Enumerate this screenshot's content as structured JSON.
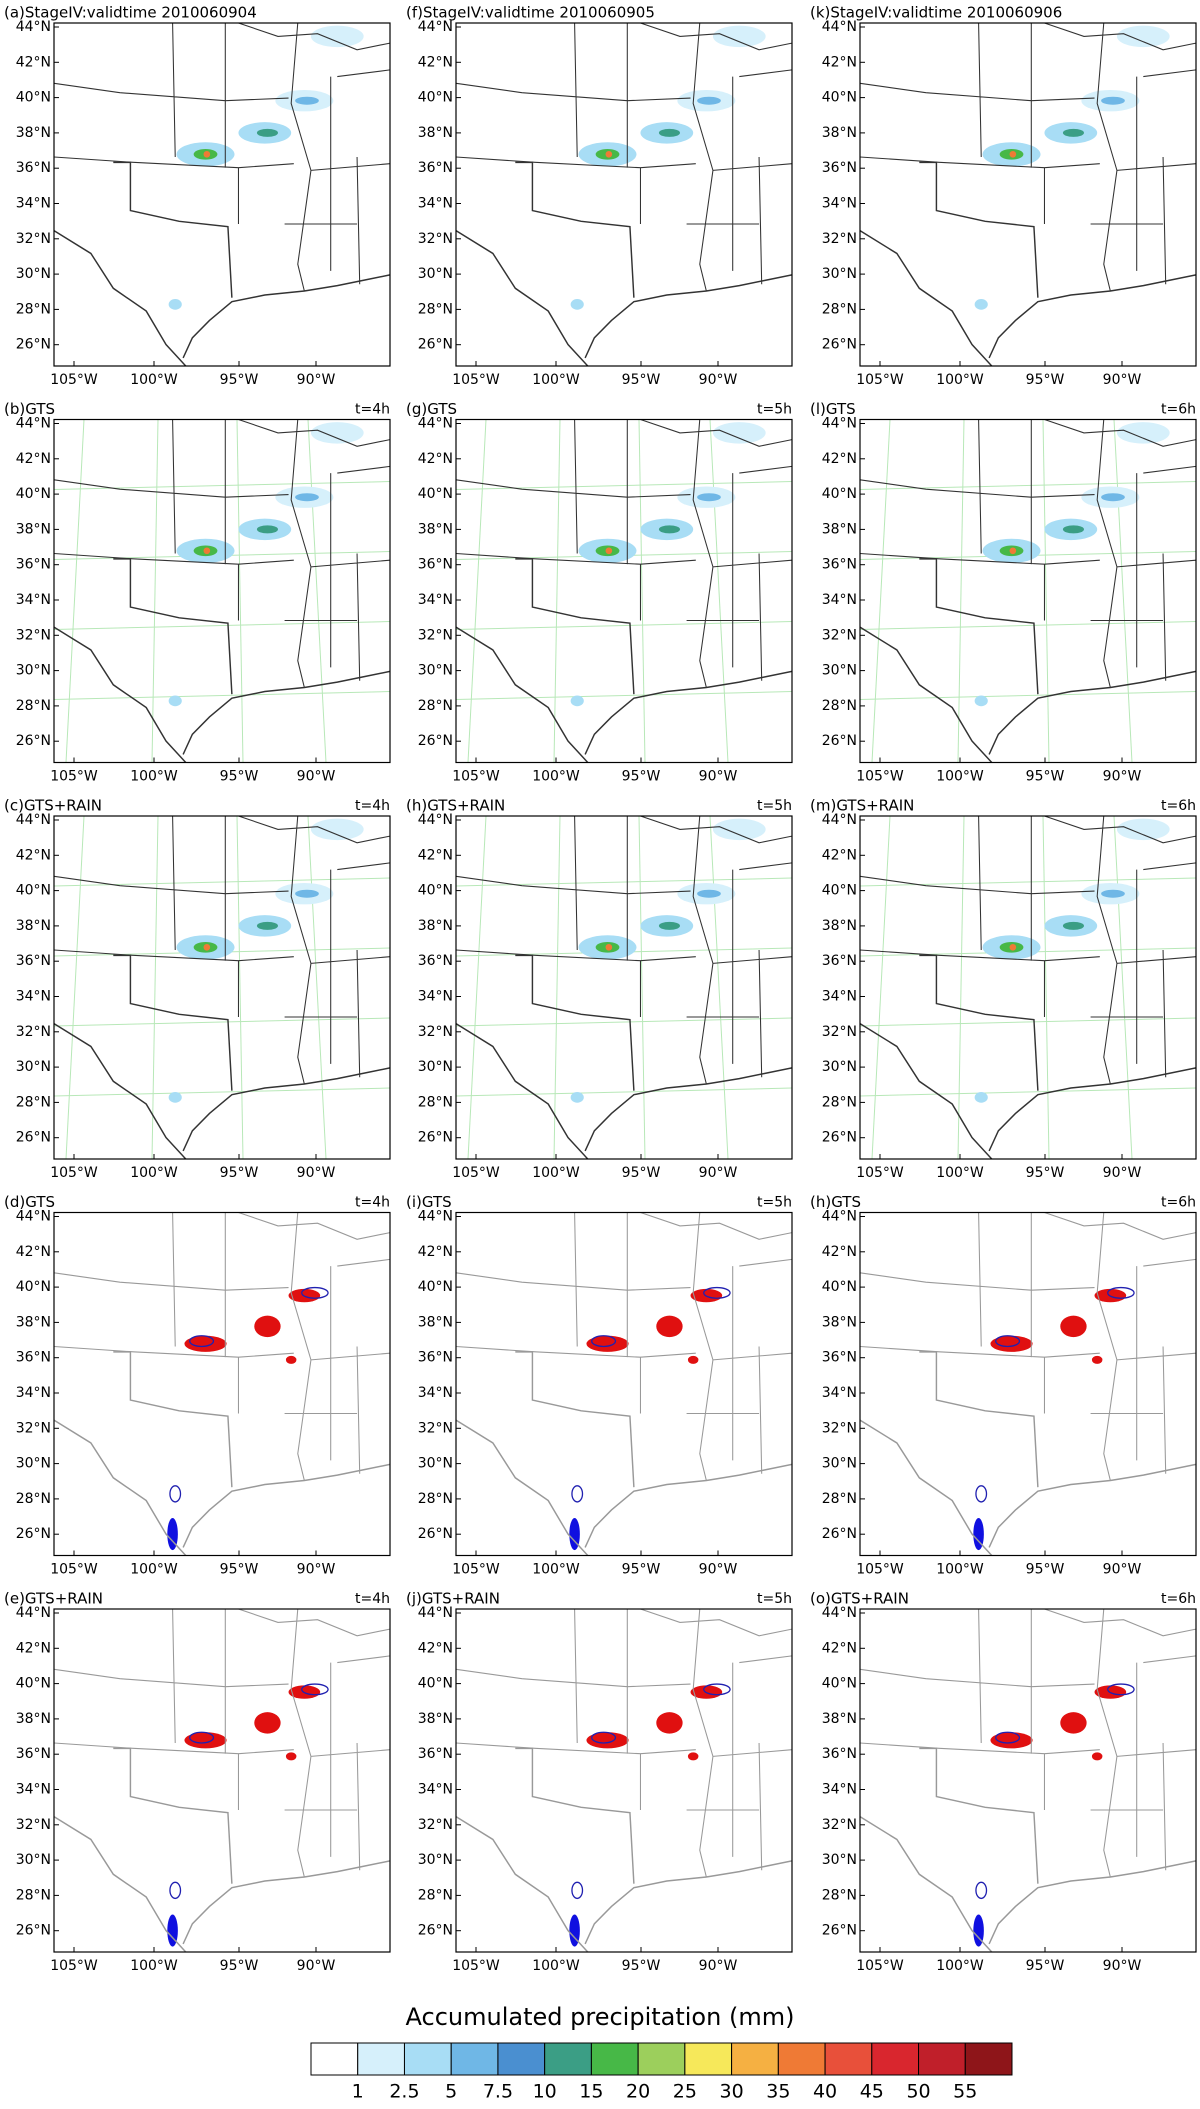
{
  "panels": [
    {
      "title": "(a)StageIV:validtime 2010060904",
      "kind": "obs"
    },
    {
      "title": "(f)StageIV:validtime 2010060905",
      "kind": "obs"
    },
    {
      "title": "(k)StageIV:validtime 2010060906",
      "kind": "obs"
    },
    {
      "title": "(b)GTS",
      "time": "t=4h",
      "kind": "fcst"
    },
    {
      "title": "(g)GTS",
      "time": "t=5h",
      "kind": "fcst"
    },
    {
      "title": "(l)GTS",
      "time": "t=6h",
      "kind": "fcst"
    },
    {
      "title": "(c)GTS+RAIN",
      "time": "t=4h",
      "kind": "fcst"
    },
    {
      "title": "(h)GTS+RAIN",
      "time": "t=5h",
      "kind": "fcst"
    },
    {
      "title": "(m)GTS+RAIN",
      "time": "t=6h",
      "kind": "fcst"
    },
    {
      "title": "(d)GTS",
      "time": "t=4h",
      "kind": "diff"
    },
    {
      "title": "(i)GTS",
      "time": "t=5h",
      "kind": "diff"
    },
    {
      "title": "(h)GTS",
      "time": "t=6h",
      "kind": "diff"
    },
    {
      "title": "(e)GTS+RAIN",
      "time": "t=4h",
      "kind": "diff"
    },
    {
      "title": "(j)GTS+RAIN",
      "time": "t=5h",
      "kind": "diff"
    },
    {
      "title": "(o)GTS+RAIN",
      "time": "t=6h",
      "kind": "diff"
    }
  ],
  "lat_labels": [
    "44°N",
    "42°N",
    "40°N",
    "38°N",
    "36°N",
    "34°N",
    "32°N",
    "30°N",
    "28°N",
    "26°N"
  ],
  "lon_labels": [
    "105°W",
    "100°W",
    "95°W",
    "90°W"
  ],
  "colorbar": {
    "title": "Accumulated precipitation (mm)",
    "labels": [
      1,
      2.5,
      5,
      7.5,
      10,
      15,
      20,
      25,
      30,
      35,
      40,
      45,
      50,
      55
    ],
    "colors": [
      "#ffffff",
      "#d6f0fb",
      "#a8ddf5",
      "#6fb7e6",
      "#4a8fd0",
      "#3b9e85",
      "#47b847",
      "#9ccf5c",
      "#f6e85a",
      "#f5b042",
      "#ef7a35",
      "#e8503a",
      "#d9262e",
      "#c01f2a",
      "#8e1519"
    ]
  }
}
